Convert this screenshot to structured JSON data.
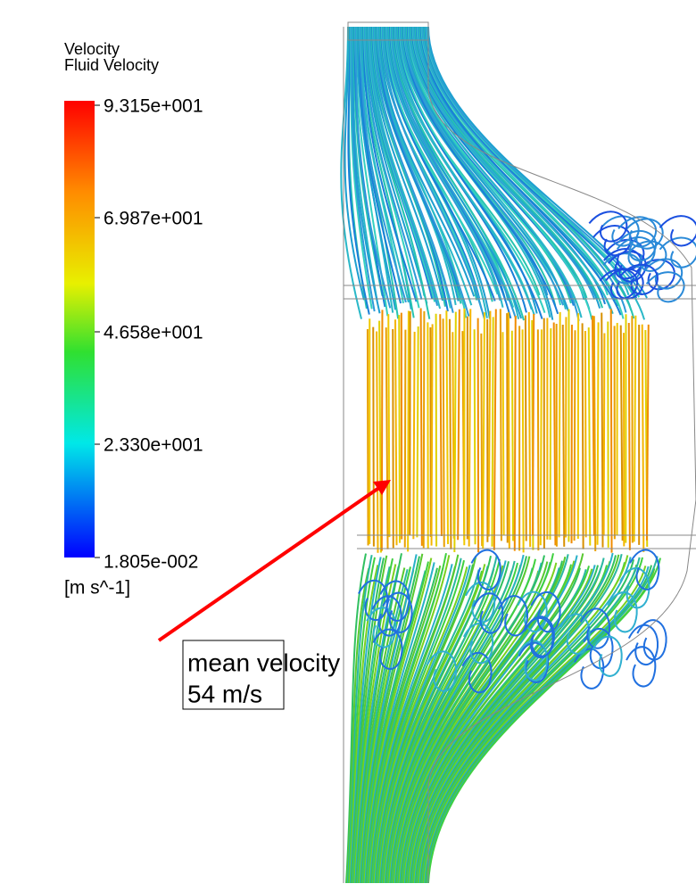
{
  "legend": {
    "title": "Velocity",
    "subtitle": "Fluid Velocity",
    "labels": [
      "9.315e+001",
      "6.987e+001",
      "4.658e+001",
      "2.330e+001",
      "1.805e-002"
    ],
    "unit": "[m s^-1]"
  },
  "annotation": {
    "lines": [
      "mean velocity",
      "54 m/s"
    ]
  }
}
